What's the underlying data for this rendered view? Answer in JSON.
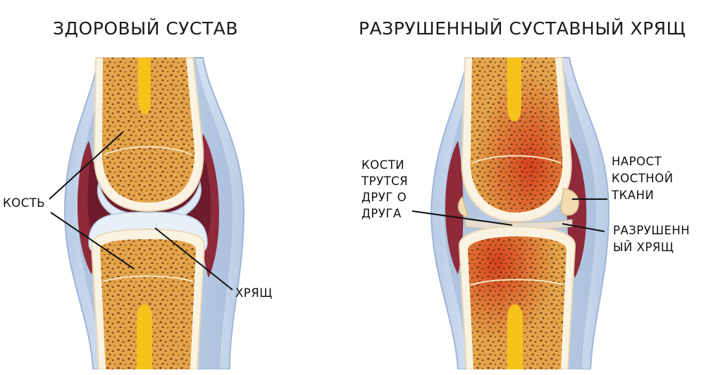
{
  "titles": {
    "healthy": "ЗДОРОВЫЙ СУСТАВ",
    "damaged": "РАЗРУШЕННЫЙ СУСТАВНЫЙ ХРЯЩ"
  },
  "labels": {
    "bone": "КОСТЬ",
    "cartilage": "ХРЯЩ",
    "rubbing": [
      "КОСТИ",
      "ТРУТСЯ",
      "ДРУГ О",
      "ДРУГА"
    ],
    "growth": [
      "НАРОСТ",
      "КОСТНОЙ",
      "ТКАНИ"
    ],
    "destroyed": [
      "РАЗРУШЕНН",
      "ЫЙ ХРЯЩ"
    ]
  },
  "colors": {
    "capsule": "#c9d7ea",
    "capsule_inner": "#8fa9cc",
    "synovial": "#8e2a3a",
    "bone": "#e4a44a",
    "bone_rim": "#fbf3e2",
    "marrow": "#f5c21a",
    "cartilage": "#dfe9f5",
    "inflamed": "#d7401c"
  }
}
